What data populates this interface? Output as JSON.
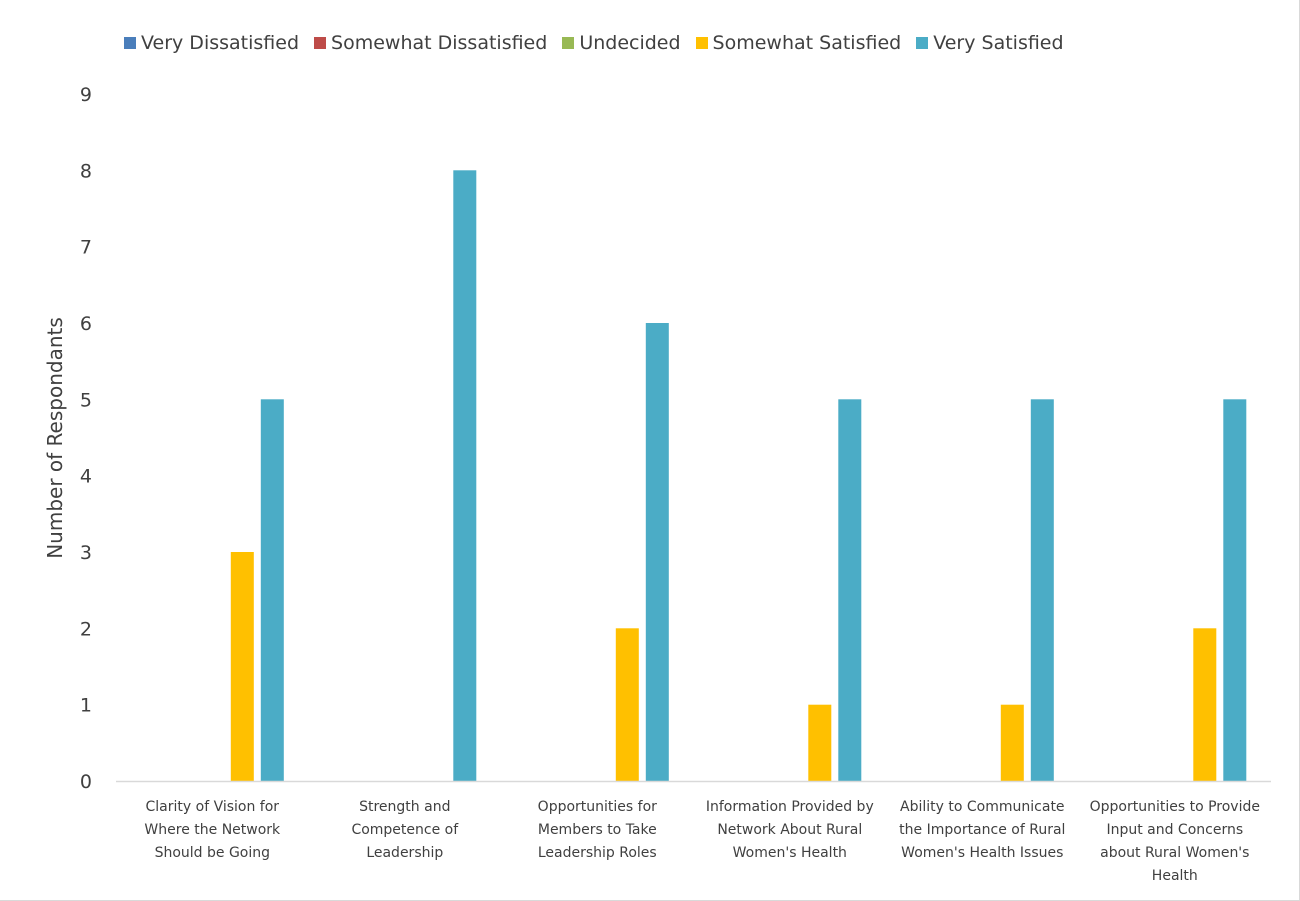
{
  "colors": {
    "very_dissatisfied": "#4a7ebb",
    "somewhat_dissatisfied": "#be4b48",
    "undecided": "#98b954",
    "somewhat_satisfied": "#ffc000",
    "very_satisfied": "#4bacc6",
    "axis": "#d9d9d9",
    "text": "#404040"
  },
  "chart_data": {
    "type": "bar",
    "ylabel": "Number of Respondants",
    "xlabel": "",
    "title": "",
    "ylim": [
      0,
      9
    ],
    "yticks": [
      0,
      1,
      2,
      3,
      4,
      5,
      6,
      7,
      8,
      9
    ],
    "grid": false,
    "legend_position": "top",
    "categories": [
      [
        "Clarity of Vision for",
        "Where the Network",
        "Should be Going"
      ],
      [
        "Strength and",
        "Competence of",
        "Leadership"
      ],
      [
        "Opportunities for",
        "Members to Take",
        "Leadership Roles"
      ],
      [
        "Information Provided by",
        "Network About Rural",
        "Women's Health"
      ],
      [
        "Ability to Communicate",
        "the Importance of Rural",
        "Women's Health Issues"
      ],
      [
        "Opportunities to Provide",
        "Input and Concerns",
        "about Rural Women's",
        "Health"
      ]
    ],
    "series": [
      {
        "name": "Very Dissatisfied",
        "color_key": "very_dissatisfied",
        "values": [
          0,
          0,
          0,
          0,
          0,
          0
        ]
      },
      {
        "name": "Somewhat Dissatisfied",
        "color_key": "somewhat_dissatisfied",
        "values": [
          0,
          0,
          0,
          0,
          0,
          0
        ]
      },
      {
        "name": "Undecided",
        "color_key": "undecided",
        "values": [
          0,
          0,
          0,
          0,
          0,
          0
        ]
      },
      {
        "name": "Somewhat Satisfied",
        "color_key": "somewhat_satisfied",
        "values": [
          3,
          0,
          2,
          1,
          1,
          2
        ]
      },
      {
        "name": "Very Satisfied",
        "color_key": "very_satisfied",
        "values": [
          5,
          8,
          6,
          5,
          5,
          5
        ]
      }
    ]
  }
}
